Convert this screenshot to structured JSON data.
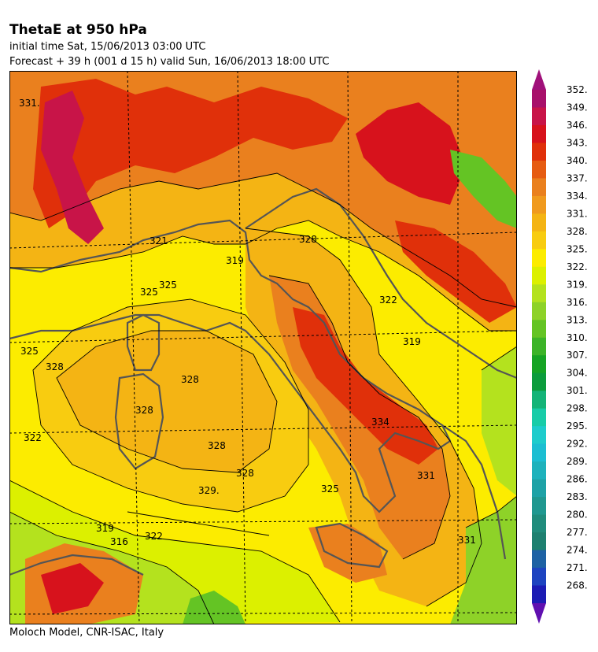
{
  "header": {
    "title": "ThetaE at 950 hPa",
    "initial_time": "initial time  Sat, 15/06/2013  03:00 UTC",
    "forecast": "Forecast  +  39 h  (001 d 15 h)  valid Sun, 16/06/2013 18:00 UTC"
  },
  "footer": {
    "credit": "Moloch Model, CNR-ISAC, Italy"
  },
  "colorbar": {
    "labels": [
      "352.",
      "349.",
      "346.",
      "343.",
      "340.",
      "337.",
      "334.",
      "331.",
      "328.",
      "325.",
      "322.",
      "319.",
      "316.",
      "313.",
      "310.",
      "307.",
      "304.",
      "301.",
      "298.",
      "295.",
      "292.",
      "289.",
      "286.",
      "283.",
      "280.",
      "277.",
      "274.",
      "271.",
      "268."
    ],
    "colors": [
      "#a8106a",
      "#c81448",
      "#d7121c",
      "#e0300a",
      "#e65c12",
      "#ea801e",
      "#f09a1e",
      "#f4b414",
      "#f8cc10",
      "#fcec00",
      "#dcf000",
      "#b4e21e",
      "#8ed228",
      "#64c424",
      "#3cb428",
      "#16a424",
      "#0c9c3c",
      "#14b478",
      "#18cca8",
      "#1ecccc",
      "#1cbed2",
      "#1eb2bc",
      "#1ea2a6",
      "#209890",
      "#208c7c",
      "#1e8070",
      "#1e62a4",
      "#1e44c0",
      "#1c1cb4"
    ],
    "arrow_top_color": "#a0107a",
    "arrow_bottom_color": "#6010b0"
  },
  "map": {
    "contour_labels": [
      "331.",
      "321",
      "319",
      "325",
      "325",
      "328",
      "328",
      "328",
      "328",
      "328",
      "329.",
      "325",
      "319",
      "316",
      "322",
      "331",
      "319",
      "322",
      "325",
      "328",
      "331",
      "334",
      "322"
    ],
    "colors": {
      "yellow": "#fcec00",
      "light_orange": "#f8cc10",
      "orange": "#f4b414",
      "dark_orange": "#ea801e",
      "red_orange": "#e0300a",
      "red": "#d7121c",
      "magenta": "#c81448",
      "yellow_green": "#dcf000",
      "light_green": "#b4e21e",
      "green": "#64c424",
      "coast": "#555555"
    }
  }
}
